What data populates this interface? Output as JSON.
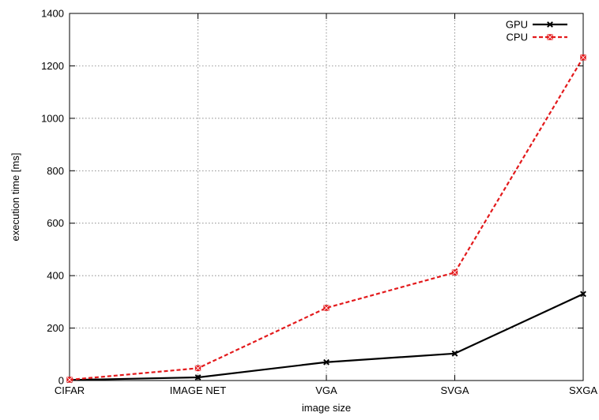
{
  "chart_data": {
    "type": "line",
    "xlabel": "image size",
    "ylabel": "execution time [ms]",
    "categories": [
      "CIFAR",
      "IMAGE NET",
      "VGA",
      "SVGA",
      "SXGA"
    ],
    "ylim": [
      0,
      1400
    ],
    "yticks": [
      0,
      200,
      400,
      600,
      800,
      1000,
      1200,
      1400
    ],
    "grid": true,
    "legend_position": "top-right",
    "series": [
      {
        "name": "GPU",
        "values": [
          2,
          12,
          70,
          103,
          330
        ],
        "color": "#000000",
        "dash": "solid",
        "marker": "x-cross"
      },
      {
        "name": "CPU",
        "values": [
          3,
          47,
          277,
          412,
          1232
        ],
        "color": "#e31a1c",
        "dash": "dashed",
        "marker": "square-x"
      }
    ]
  }
}
